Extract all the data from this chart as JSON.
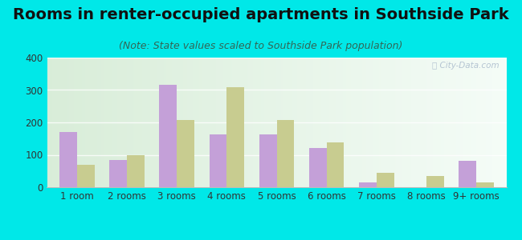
{
  "title": "Rooms in renter-occupied apartments in Southside Park",
  "subtitle": "(Note: State values scaled to Southside Park population)",
  "categories": [
    "1 room",
    "2 rooms",
    "3 rooms",
    "4 rooms",
    "5 rooms",
    "6 rooms",
    "7 rooms",
    "8 rooms",
    "9+ rooms"
  ],
  "southside_park": [
    170,
    83,
    315,
    163,
    162,
    120,
    16,
    0,
    82
  ],
  "sacramento": [
    70,
    100,
    208,
    308,
    208,
    138,
    44,
    34,
    14
  ],
  "southside_color": "#c4a0d8",
  "sacramento_color": "#c8cc90",
  "background_outer": "#00e8e8",
  "background_inner_topleft": "#d8ecd8",
  "background_inner_right": "#f0f8f0",
  "background_inner_topright": "#e8f4f8",
  "ylim": [
    0,
    400
  ],
  "yticks": [
    0,
    100,
    200,
    300,
    400
  ],
  "bar_width": 0.35,
  "title_fontsize": 14,
  "subtitle_fontsize": 9,
  "legend_fontsize": 10,
  "tick_fontsize": 8.5,
  "watermark_color": "#aabbcc"
}
